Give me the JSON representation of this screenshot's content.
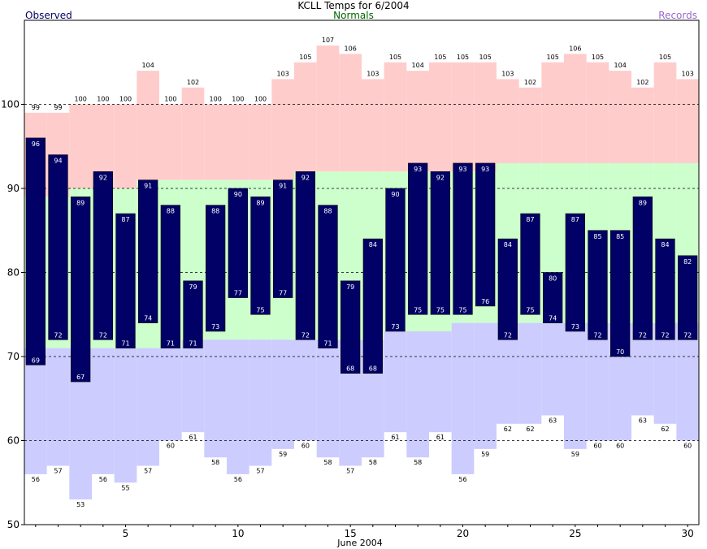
{
  "title": "KCLL Temps for 6/2004",
  "subtitle": "Normals",
  "legend": {
    "left": "Observed",
    "right": "Records"
  },
  "colors": {
    "observed": "#000066",
    "record_high_band": "#ffcccc",
    "normal_band": "#ccffcc",
    "record_low_band": "#ccccff",
    "grid": "#000000",
    "normals_text": "#006600",
    "records_text": "#9966cc"
  },
  "chart_data": {
    "type": "bar",
    "xlabel": "June 2004",
    "ylabel": "",
    "days": [
      1,
      2,
      3,
      4,
      5,
      6,
      7,
      8,
      9,
      10,
      11,
      12,
      13,
      14,
      15,
      16,
      17,
      18,
      19,
      20,
      21,
      22,
      23,
      24,
      25,
      26,
      27,
      28,
      29,
      30
    ],
    "xticks": [
      5,
      10,
      15,
      20,
      25,
      30
    ],
    "yticks": [
      50,
      60,
      70,
      80,
      90,
      100
    ],
    "ylim": [
      50,
      110
    ],
    "grid": true,
    "series": [
      {
        "name": "Observed High",
        "values": [
          96,
          94,
          89,
          92,
          87,
          91,
          88,
          79,
          88,
          90,
          89,
          91,
          92,
          88,
          79,
          84,
          90,
          93,
          92,
          93,
          93,
          84,
          87,
          80,
          87,
          85,
          85,
          89,
          84,
          82
        ]
      },
      {
        "name": "Observed Low",
        "values": [
          69,
          72,
          67,
          72,
          71,
          74,
          71,
          71,
          73,
          77,
          75,
          77,
          72,
          71,
          68,
          68,
          73,
          75,
          75,
          75,
          76,
          72,
          75,
          74,
          73,
          72,
          70,
          72,
          72,
          72
        ]
      },
      {
        "name": "Record High",
        "values": [
          99,
          99,
          100,
          100,
          100,
          104,
          100,
          102,
          100,
          100,
          100,
          103,
          105,
          107,
          106,
          103,
          105,
          104,
          105,
          105,
          105,
          103,
          102,
          105,
          106,
          105,
          104,
          102,
          105,
          103
        ]
      },
      {
        "name": "Record Low",
        "values": [
          56,
          57,
          53,
          56,
          55,
          57,
          60,
          61,
          58,
          56,
          57,
          59,
          60,
          58,
          57,
          58,
          61,
          58,
          61,
          56,
          59,
          62,
          62,
          63,
          59,
          60,
          60,
          63,
          62,
          60
        ]
      },
      {
        "name": "Normal High",
        "values": [
          89,
          89,
          90,
          90,
          90,
          91,
          91,
          91,
          91,
          91,
          91,
          91,
          92,
          92,
          92,
          92,
          92,
          92,
          92,
          92,
          92,
          93,
          93,
          93,
          93,
          93,
          93,
          93,
          93,
          93
        ]
      },
      {
        "name": "Normal Low",
        "values": [
          71,
          71,
          71,
          71,
          71,
          71,
          71,
          72,
          72,
          72,
          72,
          72,
          72,
          72,
          72,
          72,
          73,
          73,
          73,
          74,
          74,
          74,
          74,
          74,
          74,
          74,
          74,
          74,
          74,
          74
        ]
      }
    ]
  }
}
